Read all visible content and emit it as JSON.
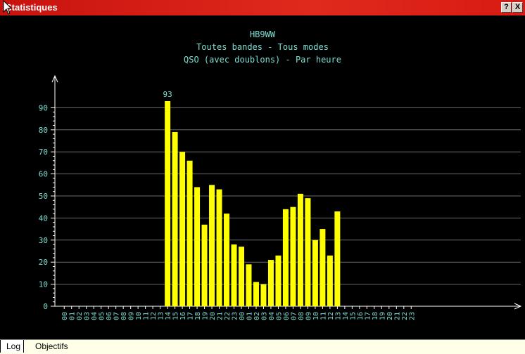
{
  "window": {
    "title": "Statistiques",
    "help_label": "?",
    "close_label": "X"
  },
  "tabs": [
    {
      "label": "Log",
      "active": true
    },
    {
      "label": "Objectifs",
      "active": false
    }
  ],
  "colors": {
    "background": "#000000",
    "bar": "#ffff00",
    "text": "#7fdfd4",
    "axis": "#ffffff",
    "title_bar": "#d8180f"
  },
  "chart_data": {
    "type": "bar",
    "title_lines": [
      "HB9WW",
      "Toutes bandes - Tous modes",
      "QSO (avec doublons) - Par heure"
    ],
    "categories": [
      "00",
      "01",
      "02",
      "03",
      "04",
      "05",
      "06",
      "07",
      "08",
      "09",
      "10",
      "11",
      "12",
      "13",
      "14",
      "15",
      "16",
      "17",
      "18",
      "19",
      "20",
      "21",
      "22",
      "23",
      "00",
      "01",
      "02",
      "03",
      "04",
      "05",
      "06",
      "07",
      "08",
      "09",
      "10",
      "11",
      "12",
      "13",
      "14",
      "15",
      "16",
      "17",
      "18",
      "19",
      "20",
      "21",
      "22",
      "23"
    ],
    "values": [
      0,
      0,
      0,
      0,
      0,
      0,
      0,
      0,
      0,
      0,
      0,
      0,
      0,
      0,
      93,
      79,
      70,
      66,
      54,
      37,
      55,
      53,
      42,
      28,
      27,
      19,
      11,
      10,
      21,
      23,
      44,
      45,
      51,
      49,
      30,
      35,
      23,
      43,
      0,
      0,
      0,
      0,
      0,
      0,
      0,
      0,
      0,
      0
    ],
    "ylim": [
      0,
      100
    ],
    "yticks": [
      0,
      10,
      20,
      30,
      40,
      50,
      60,
      70,
      80,
      90
    ],
    "max_label": "93",
    "grid": true
  }
}
